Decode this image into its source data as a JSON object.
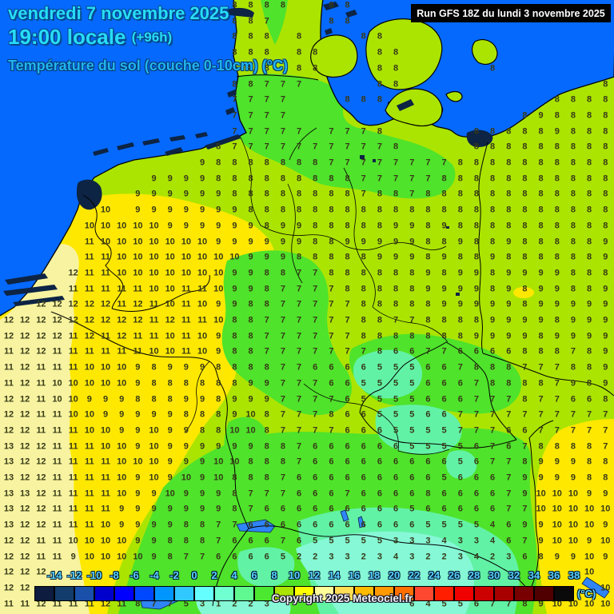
{
  "header": {
    "date_line": "vendredi 7 novembre 2025",
    "time_line": "19:00 locale",
    "forecast_offset": "(+96h)",
    "variable_line": "Température du sol (couche 0-10cm) (°C)"
  },
  "run_info": {
    "label": "Run GFS 18Z du lundi 3 novembre 2025"
  },
  "copyright": "Copyright 2025 Meteociel.fr",
  "colors": {
    "sea": "#0569fe",
    "land_base": "#abe400",
    "yellow": "#ffe800",
    "pale_yellow": "#f7f3a0",
    "green": "#4fe32b",
    "spring_green": "#62f2a6",
    "pale_cyan_green": "#86f8d6",
    "dark_water": "#0d2444",
    "lake_blue": "#2f84f8",
    "number_text": "#373a18",
    "header_cyan": "#28dcf8",
    "header_blue": "#22b4ee",
    "legend_label": "#5ad2ff"
  },
  "legend": {
    "unit": "(°C)",
    "tick_labels": [
      "-14",
      "-12",
      "-10",
      "-8",
      "-6",
      "-4",
      "-2",
      "0",
      "2",
      "4",
      "6",
      "8",
      "10",
      "12",
      "14",
      "16",
      "18",
      "20",
      "22",
      "24",
      "26",
      "28",
      "30",
      "32",
      "34",
      "36",
      "38"
    ],
    "cell_colors": [
      "#0d1c3f",
      "#123c6b",
      "#1a4faa",
      "#0000cc",
      "#0000ff",
      "#0048ff",
      "#0096ff",
      "#30c8ff",
      "#66ffff",
      "#70ffd0",
      "#60f890",
      "#4ce830",
      "#aae400",
      "#ffff00",
      "#ffff99",
      "#ffdd55",
      "#ffbb00",
      "#ff9900",
      "#ff6f00",
      "#ff4830",
      "#ff1e00",
      "#f00000",
      "#cc0000",
      "#a80000",
      "#780000",
      "#500000",
      "#0a0a0a"
    ]
  },
  "chart_data": {
    "type": "heatmap",
    "title": "Température du sol (couche 0-10cm) (°C)",
    "model_run": "Run GFS 18Z du lundi 3 novembre 2025",
    "valid_time": "vendredi 7 novembre 2025 19:00 locale (+96h)",
    "unit": "°C",
    "scale_min": -14,
    "scale_max": 38,
    "scale_step": 2,
    "grid_note": "station values on ~20px grid, '.' = sea / no value, row 36-37 hidden behind legend",
    "values_grid": [
      ". . . . . . . . . . . . . . 8 8 8 8 . . 8 8 . . . . . . . . . . . . . . . .",
      ". . . . . . . . . . . . . . 8 8 7 . . . 8 8 . . . . . . . . . . . . . . . .",
      ". . . . . . . . . . . . . . 8 8 8 . 8 . . . 8 8 . . . . . . . . . . . . . .",
      ". . . . . . . . . . . . . . 8 8 8 . 8 8 . . . 8 8 . . . . . . . . . . . . .",
      ". . . . . . . . . . . . . . 8 8 8 . 8 8 . . . 8 8 . . . . . 8 . . . . . . .",
      ". . . . . . . . . . . . . . 8 8 7 7 7 . . . . 8 8 . . . . . . . . . . . . 8",
      ". . . . . . . . . . . . . . 7 7 7 7 . . . 8 8 8 . . . . . . . . . . 8 8 8 8",
      ". . . . . . . . . . . . . . 7 7 7 7 . . . . . . . . . . . . . . 8 9 8 8 8 8",
      ". . . . . . . . . . . . . . 7 7 7 7 7 . 7 7 7 8 . . . . . 8 8 8 8 8 9 8 8 8",
      ". . . . . . . . . . . . . 8 7 7 7 7 7 7 7 7 7 7 8 . . . . 8 8 8 8 8 8 8 8 8",
      ". . . . . . . . . . . . 9 8 8 8 8 8 8 8 7 7 7 7 7 7 7 7 8 8 8 8 8 8 8 8 8 8",
      ". . . . . . . . . 9 9 9 9 8 8 8 8 8 8 8 8 8 7 7 7 7 7 8 8 8 8 8 8 8 8 8 8 8",
      ". . . . . . . . 9 9 9 9 9 9 8 8 8 8 8 8 8 8 7 8 8 7 8 8 8 8 8 8 8 8 8 8 8 8",
      ". . . . . . 10 . 9 9 9 9 9 9 9 8 8 8 8 8 8 8 8 8 8 8 8 8 8 8 8 8 8 8 8 8 8 8",
      ". . . . . 10 10 10 10 10 9 9 9 9 9 9 8 9 9 8 8 8 8 8 9 9 8 9 8 8 8 8 8 8 8 8 8 8",
      ". . . . . 11 10 10 10 10 10 10 10 9 9 9 9 9 9 8 8 9 9 9 9 9 8 8 9 8 8 9 8 8 8 8 8 9",
      ". . . . . 11 11 10 10 10 10 10 10 10 10 9 9 9 8 8 8 8 8 9 9 9 8 9 8 8 9 8 8 8 8 8 8 9",
      ". . . . 12 11 11 10 10 10 10 10 10 10 9 9 8 8 7 7 8 8 8 8 8 8 9 8 9 9 8 9 9 9 9 8 8 8",
      ". . . . 11 11 11 11 11 10 10 11 11 10 9 9 8 7 7 7 7 8 8 8 8 8 9 9 9 9 8 9 8 9 9 8 8 9",
      ". . 12 12 12 12 12 11 12 11 10 11 10 9 9 8 8 7 7 7 7 7 8 8 8 8 8 9 9 9 9 9 8 9 9 9 9 9",
      "12 12 12 12 12 12 12 12 12 11 12 11 11 10 8 8 7 7 7 7 7 7 8 8 7 7 8 8 8 8 9 9 9 9 8 9 9 9",
      "12 12 12 12 11 12 11 12 11 11 10 11 10 9 8 8 7 7 7 7 7 7 8 8 8 8 8 8 8 9 9 9 9 8 9 9 9 9",
      "11 12 12 11 11 11 11 11 11 10 10 11 10 9 8 8 7 7 7 7 7 7 7 8 6 6 7 7 6 6 6 6 8 8 8 7 8 9",
      "11 12 11 11 11 10 10 10 9 8 9 9 9 8 8 8 8 7 7 6 6 6 6 5 5 5 6 6 7 8 8 8 7 7 7 8 8 9",
      "11 12 11 10 10 10 10 10 9 8 8 8 8 8 8 9 9 7 7 7 6 6 5 5 5 5 6 6 6 7 8 8 8 8 7 9 8 9",
      "12 12 11 10 10 9 9 9 8 8 8 9 9 8 9 9 9 7 7 7 7 6 5 5 5 5 6 6 6 7 7 7 8 7 7 6 6 8",
      "12 12 11 11 10 10 9 9 9 9 9 8 8 8 9 10 8 7 7 7 8 6 6 5 5 5 6 6 7 7 7 7 7 7 7 7 7 7",
      "12 12 11 11 11 10 10 9 9 10 9 9 8 8 10 10 8 7 7 7 7 6 6 6 5 5 5 5 7 7 7 6 6 7 7 7 7 7",
      "13 12 12 11 11 11 10 10 9 10 9 9 9 9 9 9 8 8 7 6 6 6 6 6 6 5 5 5 5 6 7 6 7 8 8 8 8 7",
      "13 12 12 11 11 11 11 10 10 10 9 9 9 10 10 8 8 8 7 6 6 6 6 6 6 6 6 6 5 6 7 7 8 9 9 9 8 8",
      "13 12 12 11 11 11 11 10 9 10 9 10 9 10 8 8 8 7 6 6 6 6 6 6 6 6 6 5 6 6 6 7 9 9 9 9 8 8",
      "13 13 12 11 11 11 11 10 9 9 10 9 9 9 8 7 7 7 6 6 6 7 6 6 6 6 8 6 6 6 6 7 9 10 10 10 9 9",
      "13 12 12 11 11 11 11 9 9 9 9 9 9 9 8 7 6 6 6 6 6 6 6 6 6 5 6 6 6 6 6 7 7 10 10 10 10 10",
      "13 12 12 11 11 11 10 9 9 9 9 8 8 7 7 6 6 6 6 6 6 6 6 6 6 6 5 5 5 5 4 6 9 9 10 10 10 9",
      "12 12 11 11 10 10 10 10 9 9 8 8 8 7 6 6 6 7 6 5 5 5 5 5 3 3 3 4 3 3 4 6 7 9 10 10 9 10",
      "12 12 11 11 9 10 10 10 10 9 8 7 7 6 6 6 6 5 2 2 3 3 2 3 4 3 2 2 3 4 2 3 6 8 9 9 10 9",
      "12 12 12 . . . . . . . . . . . . . . . . . . . . . . . . . . . . . . . . . 10 .",
      "12 12 . . . . . . . . . . . . . . . . . . . . . . . . . . . . . . . . . . . 10",
      "11 11 12 11 11 11 12 11 8 7 7 5 3 1 2 2 3 . . . . . . . . 6 4 5 5 6 7 7 8 9 10 10 10 10"
    ]
  }
}
